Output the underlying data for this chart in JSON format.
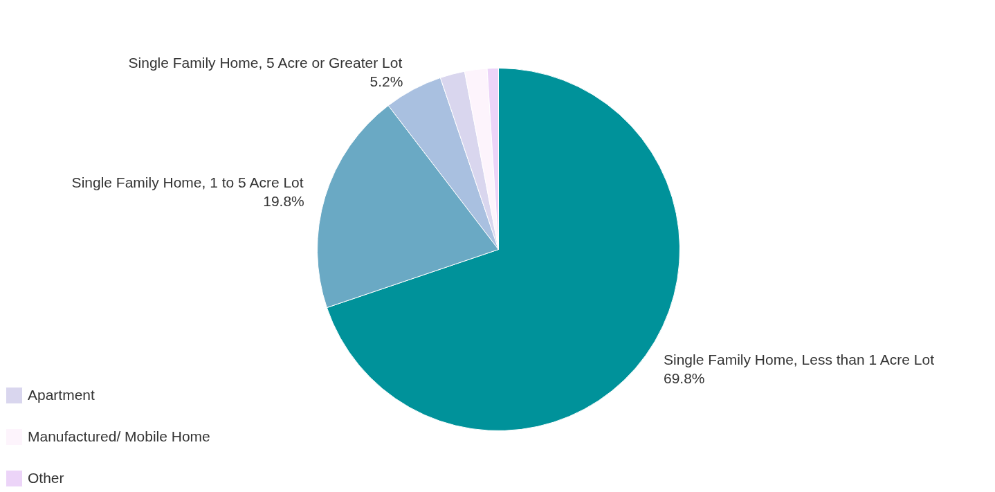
{
  "chart_data": {
    "type": "pie",
    "categories": [
      "Single Family Home, Less than 1 Acre Lot",
      "Single Family Home, 1 to 5 Acre Lot",
      "Single Family Home, 5 Acre or Greater Lot",
      "Apartment",
      "Manufactured/ Mobile Home",
      "Other"
    ],
    "values": [
      69.8,
      19.8,
      5.2,
      2.2,
      2.0,
      1.0
    ],
    "colors": [
      "#00929a",
      "#6aa9c4",
      "#a9c0e0",
      "#d9d6ee",
      "#fdf4fc",
      "#ecd4f8"
    ],
    "value_labels": [
      "69.8%",
      "19.8%",
      "5.2%",
      null,
      null,
      null
    ],
    "legend": "bottom left"
  }
}
